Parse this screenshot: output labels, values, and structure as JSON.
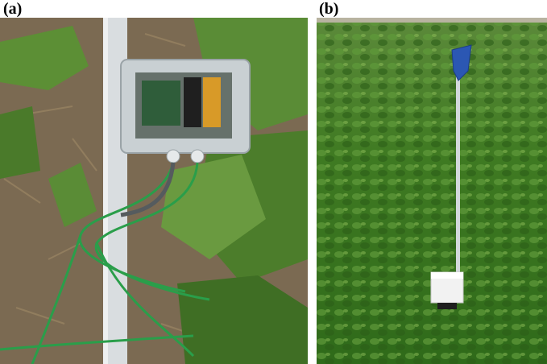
{
  "figure": {
    "panels": [
      {
        "label": "(a)",
        "subject": "soil-sensor-node-cotton",
        "colors": {
          "soil": "#7b6a52",
          "leaf": "#4f7f2d",
          "post": "#d9dde0",
          "cable": "#2a9e4a",
          "enclosure": "#c9d0d3"
        }
      },
      {
        "label": "(b)",
        "subject": "sensor-node-peanut-field",
        "colors": {
          "crop": "#3f7a22",
          "flag": "#2b57b3",
          "pole": "#d3d8dc",
          "box": "#f2f2f2"
        }
      }
    ]
  }
}
